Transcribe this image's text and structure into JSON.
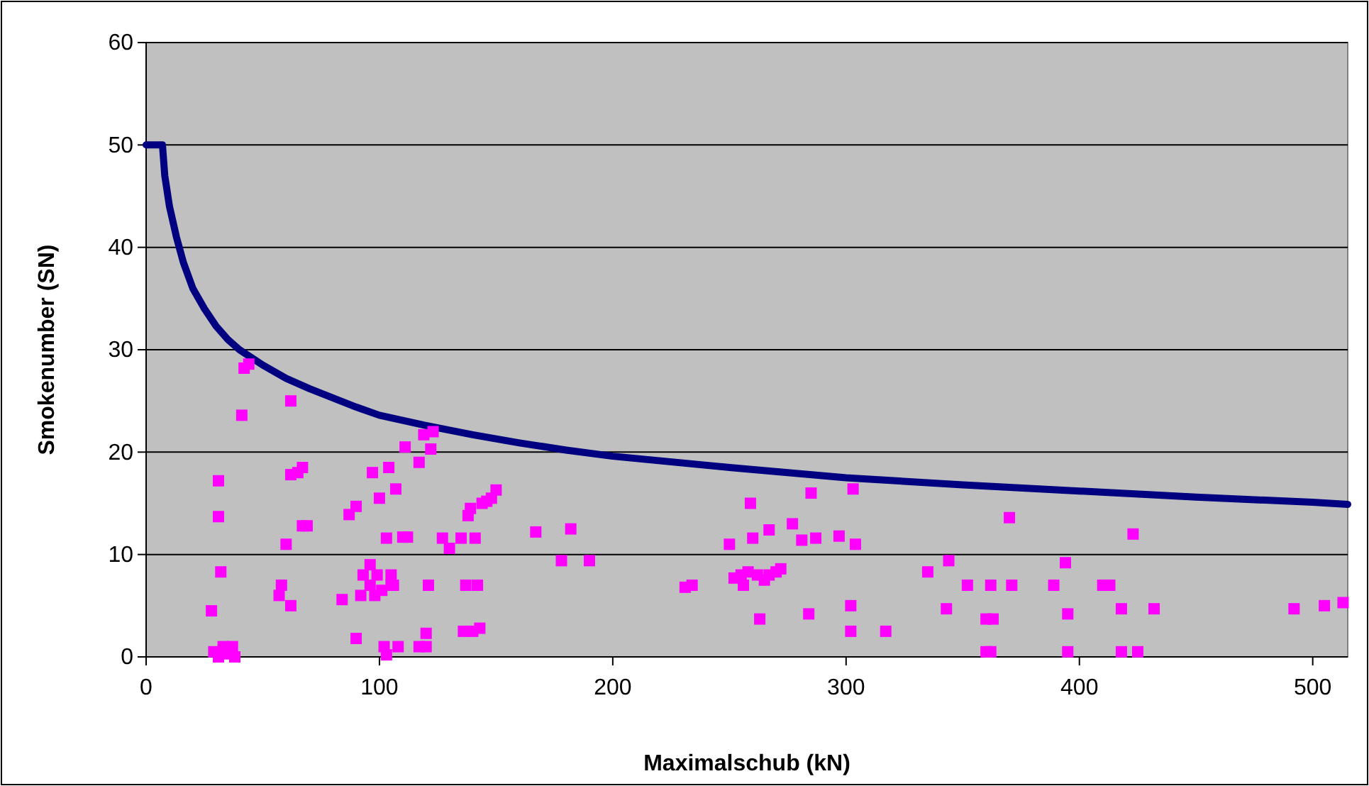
{
  "chart_data": {
    "type": "scatter",
    "xlabel": "Maximalschub (kN)",
    "ylabel": "Smokenumber (SN)",
    "xlim": [
      0,
      515
    ],
    "ylim": [
      0,
      60
    ],
    "xticks": [
      0,
      100,
      200,
      300,
      400,
      500
    ],
    "yticks": [
      0,
      10,
      20,
      30,
      40,
      50,
      60
    ],
    "grid": "y",
    "marker": "square",
    "series": [
      {
        "type": "line",
        "color": "#000080",
        "marker": "none",
        "line_style": "solid",
        "x": [
          0,
          7,
          8,
          10,
          13,
          16,
          20,
          25,
          30,
          35,
          40,
          50,
          60,
          70,
          80,
          90,
          100,
          120,
          140,
          160,
          180,
          200,
          250,
          300,
          350,
          400,
          450,
          500,
          515
        ],
        "values": [
          50,
          50,
          47,
          44,
          41,
          38.5,
          36,
          34,
          32.3,
          31,
          30,
          28.5,
          27.2,
          26.2,
          25.3,
          24.4,
          23.6,
          22.6,
          21.7,
          20.9,
          20.2,
          19.6,
          18.5,
          17.5,
          16.8,
          16.2,
          15.6,
          15.1,
          14.9
        ]
      },
      {
        "type": "scatter",
        "color": "#ff00ff",
        "x": [
          29,
          31,
          33,
          35,
          37,
          38,
          28,
          31,
          31,
          32,
          41,
          42,
          44,
          57,
          58,
          60,
          62,
          62,
          62,
          65,
          67,
          67,
          69,
          84,
          87,
          90,
          90,
          92,
          93,
          96,
          96,
          97,
          98,
          99,
          100,
          101,
          102,
          103,
          103,
          104,
          105,
          105,
          106,
          107,
          108,
          110,
          111,
          112,
          117,
          117,
          119,
          120,
          120,
          121,
          122,
          123,
          127,
          130,
          135,
          136,
          137,
          138,
          139,
          140,
          141,
          142,
          143,
          144,
          146,
          148,
          150,
          167,
          178,
          182,
          190,
          231,
          234,
          250,
          252,
          255,
          256,
          258,
          259,
          260,
          262,
          263,
          265,
          267,
          267,
          270,
          272,
          277,
          281,
          284,
          285,
          287,
          297,
          302,
          302,
          303,
          304,
          317,
          335,
          343,
          344,
          352,
          360,
          360,
          362,
          362,
          363,
          370,
          371,
          389,
          394,
          395,
          395,
          410,
          413,
          418,
          418,
          423,
          425,
          432,
          492,
          505,
          513
        ],
        "values": [
          0.5,
          0,
          1,
          0.3,
          1,
          0,
          4.5,
          13.7,
          17.2,
          8.3,
          23.6,
          28.2,
          28.6,
          6,
          7,
          11,
          17.8,
          25,
          5,
          18,
          18.5,
          12.8,
          12.8,
          5.6,
          13.9,
          14.7,
          1.8,
          6,
          8,
          7,
          9,
          18,
          6,
          8,
          15.5,
          6.5,
          1,
          11.6,
          0.2,
          18.5,
          7,
          8,
          7,
          16.4,
          1,
          11.7,
          20.5,
          11.7,
          19,
          1,
          21.7,
          1,
          2.3,
          7,
          20.3,
          22,
          11.6,
          10.6,
          11.6,
          2.5,
          7,
          13.8,
          14.5,
          2.5,
          11.6,
          7,
          2.8,
          15,
          15.2,
          15.5,
          16.3,
          12.2,
          9.4,
          12.5,
          9.4,
          6.8,
          7,
          11,
          7.7,
          8,
          7,
          8.3,
          15,
          11.6,
          8,
          3.7,
          7.5,
          8,
          12.4,
          8.3,
          8.6,
          13,
          11.4,
          4.2,
          16,
          11.6,
          11.8,
          2.5,
          5,
          16.4,
          11,
          2.5,
          8.3,
          4.7,
          9.4,
          7,
          3.7,
          0.5,
          7,
          0.5,
          3.7,
          13.6,
          7,
          7,
          9.2,
          4.2,
          0.5,
          7,
          7,
          4.7,
          0.5,
          12,
          0.5,
          4.7,
          4.7,
          5,
          5.3
        ]
      }
    ]
  }
}
